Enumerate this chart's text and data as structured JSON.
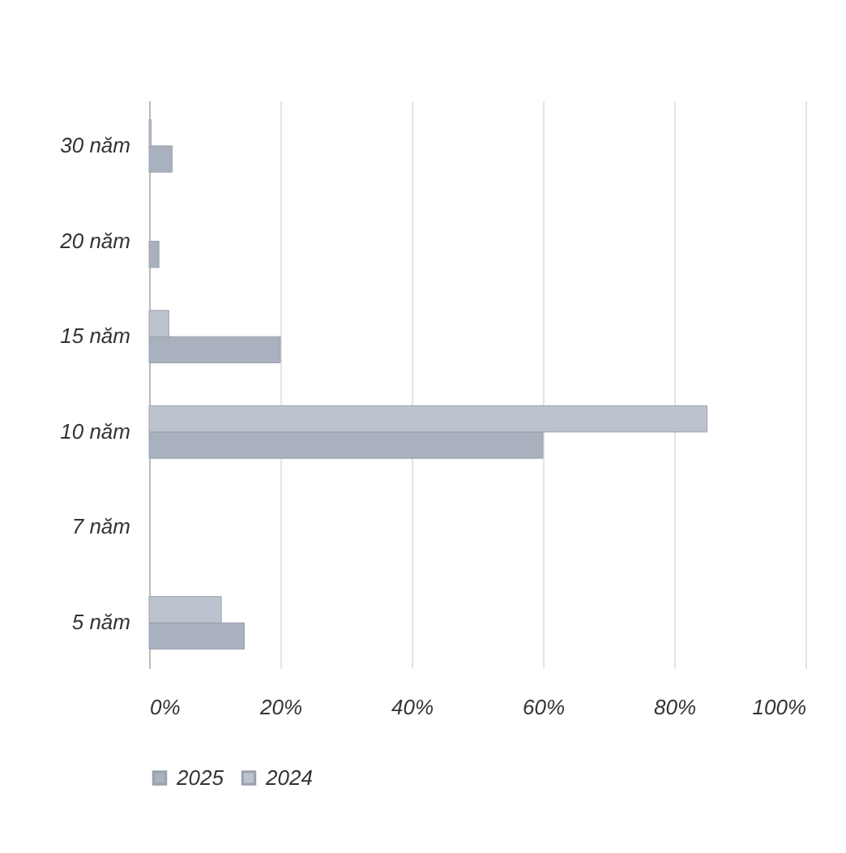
{
  "chart_data": {
    "type": "bar",
    "orientation": "horizontal",
    "categories": [
      "30 năm",
      "20 năm",
      "15 năm",
      "10 năm",
      "7 năm",
      "5 năm"
    ],
    "series": [
      {
        "name": "2025",
        "color": "#a9b1be",
        "values": [
          3.5,
          1.5,
          20,
          60,
          null,
          14.5
        ]
      },
      {
        "name": "2024",
        "color": "#bcc3ce",
        "values": [
          0.3,
          null,
          3,
          85,
          null,
          11
        ]
      }
    ],
    "xlim": [
      0,
      100
    ],
    "xticks": [
      {
        "value": 0,
        "label": "0%"
      },
      {
        "value": 20,
        "label": "20%"
      },
      {
        "value": 40,
        "label": "40%"
      },
      {
        "value": 60,
        "label": "60%"
      },
      {
        "value": 80,
        "label": "80%"
      },
      {
        "value": 100,
        "label": "100%"
      }
    ],
    "grid": "x",
    "legend": "bottom"
  }
}
